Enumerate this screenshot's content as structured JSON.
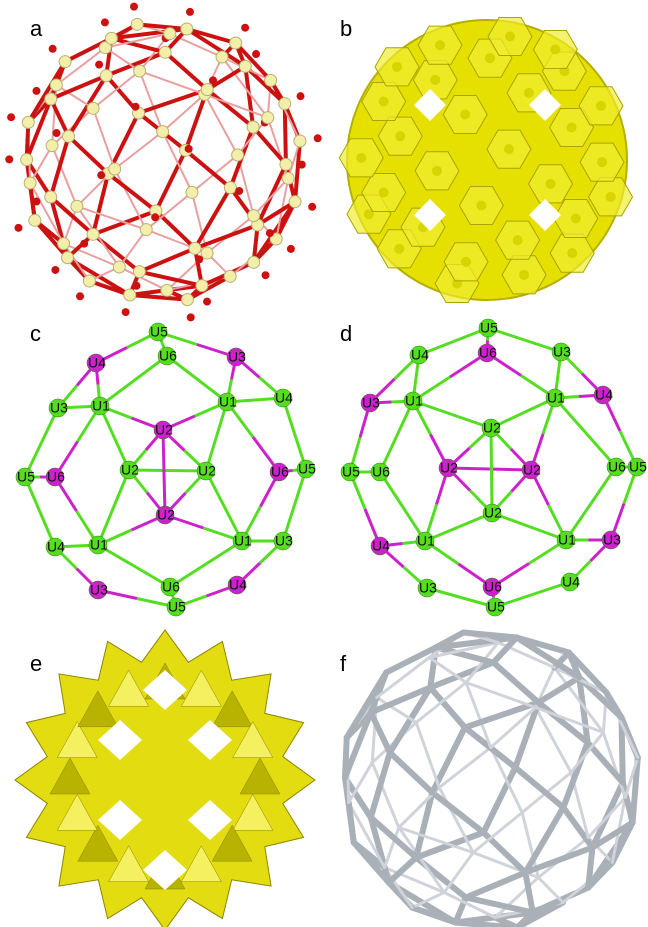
{
  "panels": [
    "a",
    "b",
    "c",
    "d",
    "e",
    "f"
  ],
  "graph_c": {
    "nodes": [
      {
        "label": "U5",
        "color": "#55dd22"
      },
      {
        "label": "U6",
        "color": "#55dd22"
      },
      {
        "label": "U4",
        "color": "#cc22cc"
      },
      {
        "label": "U3",
        "color": "#cc22cc"
      },
      {
        "label": "U3",
        "color": "#55dd22"
      },
      {
        "label": "U1",
        "color": "#55dd22"
      },
      {
        "label": "U1",
        "color": "#55dd22"
      },
      {
        "label": "U4",
        "color": "#55dd22"
      },
      {
        "label": "U2",
        "color": "#cc22cc"
      },
      {
        "label": "U2",
        "color": "#55dd22"
      },
      {
        "label": "U2",
        "color": "#55dd22"
      },
      {
        "label": "U5",
        "color": "#55dd22"
      },
      {
        "label": "U6",
        "color": "#cc22cc"
      },
      {
        "label": "U6",
        "color": "#cc22cc"
      },
      {
        "label": "U5",
        "color": "#55dd22"
      },
      {
        "label": "U2",
        "color": "#cc22cc"
      },
      {
        "label": "U4",
        "color": "#55dd22"
      },
      {
        "label": "U1",
        "color": "#55dd22"
      },
      {
        "label": "U1",
        "color": "#55dd22"
      },
      {
        "label": "U3",
        "color": "#55dd22"
      },
      {
        "label": "U3",
        "color": "#cc22cc"
      },
      {
        "label": "U6",
        "color": "#55dd22"
      },
      {
        "label": "U5",
        "color": "#55dd22"
      },
      {
        "label": "U4",
        "color": "#cc22cc"
      }
    ]
  },
  "graph_d": {
    "nodes": [
      {
        "label": "U5",
        "color": "#55dd22"
      },
      {
        "label": "U6",
        "color": "#cc22cc"
      },
      {
        "label": "U4",
        "color": "#55dd22"
      },
      {
        "label": "U3",
        "color": "#55dd22"
      },
      {
        "label": "U3",
        "color": "#cc22cc"
      },
      {
        "label": "U1",
        "color": "#55dd22"
      },
      {
        "label": "U1",
        "color": "#55dd22"
      },
      {
        "label": "U4",
        "color": "#cc22cc"
      },
      {
        "label": "U2",
        "color": "#55dd22"
      },
      {
        "label": "U2",
        "color": "#cc22cc"
      },
      {
        "label": "U2",
        "color": "#cc22cc"
      },
      {
        "label": "U5",
        "color": "#55dd22"
      },
      {
        "label": "U6",
        "color": "#55dd22"
      },
      {
        "label": "U6",
        "color": "#55dd22"
      },
      {
        "label": "U5",
        "color": "#55dd22"
      },
      {
        "label": "U2",
        "color": "#55dd22"
      },
      {
        "label": "U4",
        "color": "#cc22cc"
      },
      {
        "label": "U1",
        "color": "#55dd22"
      },
      {
        "label": "U1",
        "color": "#55dd22"
      },
      {
        "label": "U3",
        "color": "#cc22cc"
      },
      {
        "label": "U3",
        "color": "#55dd22"
      },
      {
        "label": "U6",
        "color": "#cc22cc"
      },
      {
        "label": "U5",
        "color": "#55dd22"
      },
      {
        "label": "U4",
        "color": "#55dd22"
      }
    ]
  }
}
